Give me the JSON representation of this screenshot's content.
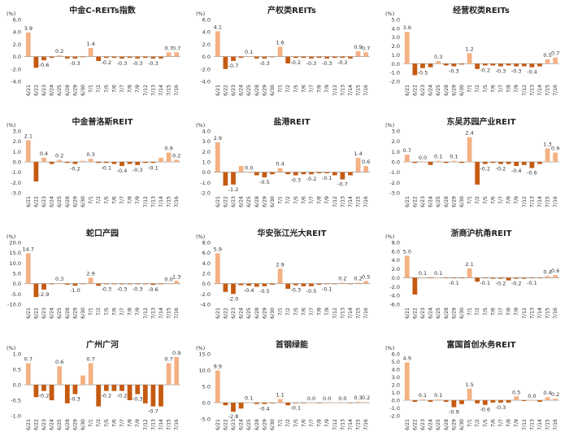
{
  "colors": {
    "positive": "#F4B183",
    "negative": "#C55A11",
    "text": "#333333",
    "axis": "#999999"
  },
  "chart_data": [
    {
      "type": "bar",
      "title": "中金C-REITs指数",
      "unit": "(%)",
      "categories": [
        "6/21",
        "6/22",
        "6/23",
        "6/24",
        "6/25",
        "6/28",
        "6/29",
        "6/30",
        "7/1",
        "7/2",
        "7/5",
        "7/6",
        "7/7",
        "7/8",
        "7/9",
        "7/12",
        "7/13",
        "7/14",
        "7/15",
        "7/16"
      ],
      "values": [
        3.9,
        -1.8,
        -0.6,
        -0.2,
        0.2,
        -0.3,
        -0.3,
        -0.1,
        1.4,
        -0.7,
        -0.2,
        -0.2,
        -0.3,
        -0.2,
        -0.3,
        -0.2,
        -0.3,
        -0.3,
        0.7,
        0.7
      ],
      "labeled_indices": [
        0,
        2,
        4,
        6,
        8,
        10,
        12,
        14,
        16,
        18,
        19
      ],
      "ylim": [
        -4.0,
        6.0
      ],
      "yticks": [
        "6.0",
        "4.0",
        "2.0",
        "0.0",
        "-2.0",
        "-4.0"
      ]
    },
    {
      "type": "bar",
      "title": "产权类REITs",
      "unit": "(%)",
      "categories": [
        "6/21",
        "6/22",
        "6/23",
        "6/24",
        "6/25",
        "6/28",
        "6/29",
        "6/30",
        "7/1",
        "7/2",
        "7/5",
        "7/6",
        "7/7",
        "7/8",
        "7/9",
        "7/12",
        "7/13",
        "7/14",
        "7/15",
        "7/16"
      ],
      "values": [
        4.1,
        -2.0,
        -0.7,
        -0.2,
        0.1,
        -0.3,
        -0.3,
        -0.1,
        1.6,
        -1.1,
        -0.2,
        -0.2,
        -0.3,
        -0.2,
        -0.3,
        -0.2,
        -0.2,
        -0.3,
        0.9,
        0.7
      ],
      "labeled_indices": [
        0,
        2,
        4,
        6,
        8,
        10,
        12,
        14,
        16,
        18,
        19
      ],
      "ylim": [
        -4.0,
        6.0
      ],
      "yticks": [
        "6.0",
        "4.0",
        "2.0",
        "0.0",
        "-2.0",
        "-4.0"
      ]
    },
    {
      "type": "bar",
      "title": "经营权类REITs",
      "unit": "(%)",
      "categories": [
        "6/21",
        "6/22",
        "6/23",
        "6/24",
        "6/25",
        "6/28",
        "6/29",
        "6/30",
        "7/1",
        "7/2",
        "7/5",
        "7/6",
        "7/7",
        "7/8",
        "7/9",
        "7/12",
        "7/13",
        "7/14",
        "7/15",
        "7/16"
      ],
      "values": [
        3.6,
        -1.3,
        -0.5,
        -0.4,
        0.3,
        -0.2,
        -0.3,
        -0.1,
        1.2,
        -0.6,
        -0.2,
        -0.2,
        -0.3,
        -0.2,
        -0.3,
        -0.3,
        -0.4,
        -0.3,
        0.5,
        0.7
      ],
      "labeled_indices": [
        0,
        2,
        4,
        6,
        8,
        10,
        12,
        14,
        16,
        18,
        19
      ],
      "ylim": [
        -2.0,
        5.0
      ],
      "yticks": [
        "5.0",
        "4.0",
        "3.0",
        "2.0",
        "1.0",
        "0.0",
        "-1.0",
        "-2.0"
      ]
    },
    {
      "type": "bar",
      "title": "中金普洛斯REIT",
      "unit": "(%)",
      "categories": [
        "6/21",
        "6/22",
        "6/23",
        "6/24",
        "6/25",
        "6/28",
        "6/29",
        "6/30",
        "7/1",
        "7/2",
        "7/5",
        "7/6",
        "7/7",
        "7/8",
        "7/9",
        "7/12",
        "7/13",
        "7/14",
        "7/15",
        "7/16"
      ],
      "values": [
        2.1,
        -1.9,
        0.4,
        -0.2,
        0.2,
        -0.1,
        -0.2,
        0.1,
        0.3,
        -0.1,
        -0.1,
        -0.2,
        -0.4,
        -0.2,
        -0.3,
        -0.1,
        -0.1,
        0.4,
        0.9,
        0.2
      ],
      "labeled_indices": [
        0,
        2,
        4,
        6,
        8,
        10,
        12,
        14,
        16,
        18,
        19
      ],
      "ylim": [
        -3.0,
        3.0
      ],
      "yticks": [
        "3.0",
        "2.0",
        "1.0",
        "0.0",
        "-1.0",
        "-2.0",
        "-3.0"
      ]
    },
    {
      "type": "bar",
      "title": "盐港REIT",
      "unit": "(%)",
      "categories": [
        "6/21",
        "6/22",
        "6/23",
        "6/24",
        "6/25",
        "6/28",
        "6/29",
        "6/30",
        "7/1",
        "7/2",
        "7/5",
        "7/6",
        "7/7",
        "7/8",
        "7/9",
        "7/12",
        "7/13",
        "7/14",
        "7/15",
        "7/16"
      ],
      "values": [
        2.9,
        -1.3,
        -1.2,
        0.6,
        0.0,
        -0.3,
        -0.5,
        -0.2,
        0.4,
        -0.2,
        -0.3,
        -0.2,
        -0.2,
        -0.1,
        -0.1,
        -0.3,
        -0.7,
        -0.3,
        1.4,
        0.6
      ],
      "labeled_indices": [
        0,
        2,
        4,
        6,
        8,
        10,
        12,
        14,
        16,
        18,
        19
      ],
      "ylim": [
        -2.0,
        4.0
      ],
      "yticks": [
        "4.0",
        "3.0",
        "2.0",
        "1.0",
        "0.0",
        "-1.0",
        "-2.0"
      ]
    },
    {
      "type": "bar",
      "title": "东吴苏园产业REIT",
      "unit": "(%)",
      "categories": [
        "6/21",
        "6/22",
        "6/23",
        "6/24",
        "6/25",
        "6/28",
        "6/29",
        "6/30",
        "7/1",
        "7/2",
        "7/5",
        "7/6",
        "7/7",
        "7/8",
        "7/9",
        "7/12",
        "7/13",
        "7/14",
        "7/15",
        "7/16"
      ],
      "values": [
        0.7,
        -0.1,
        0.0,
        -0.3,
        0.1,
        -0.1,
        0.1,
        -0.1,
        2.4,
        -2.2,
        -0.2,
        -0.1,
        -0.2,
        -0.2,
        -0.4,
        -0.3,
        -0.6,
        -0.2,
        1.3,
        0.9
      ],
      "labeled_indices": [
        0,
        2,
        4,
        6,
        8,
        10,
        12,
        14,
        16,
        18,
        19
      ],
      "ylim": [
        -3.0,
        3.0
      ],
      "yticks": [
        "3.0",
        "2.0",
        "1.0",
        "0.0",
        "-1.0",
        "-2.0",
        "-3.0"
      ]
    },
    {
      "type": "bar",
      "title": "蛇口产园",
      "unit": "(%)",
      "categories": [
        "6/21",
        "6/22",
        "6/23",
        "6/24",
        "6/25",
        "6/28",
        "6/29",
        "6/30",
        "7/1",
        "7/2",
        "7/5",
        "7/6",
        "7/7",
        "7/8",
        "7/9",
        "7/12",
        "7/13",
        "7/14",
        "7/15",
        "7/16"
      ],
      "values": [
        14.7,
        -6.5,
        -2.9,
        -0.3,
        0.3,
        -0.5,
        -1.0,
        -0.2,
        2.9,
        -1.0,
        -0.3,
        -0.3,
        -0.3,
        -0.3,
        -0.3,
        -0.3,
        -0.6,
        -0.3,
        0.0,
        1.3
      ],
      "labeled_indices": [
        0,
        2,
        4,
        6,
        8,
        10,
        12,
        14,
        16,
        18,
        19
      ],
      "ylim": [
        -10.0,
        20.0
      ],
      "yticks": [
        "20.0",
        "15.0",
        "10.0",
        "5.0",
        "0.0",
        "-5.0",
        "-10.0"
      ]
    },
    {
      "type": "bar",
      "title": "华安张江光大REIT",
      "unit": "(%)",
      "categories": [
        "6/21",
        "6/22",
        "6/23",
        "6/24",
        "6/25",
        "6/28",
        "6/29",
        "6/30",
        "7/1",
        "7/2",
        "7/5",
        "7/6",
        "7/7",
        "7/8",
        "7/9",
        "7/12",
        "7/13",
        "7/14",
        "7/15",
        "7/16"
      ],
      "values": [
        5.9,
        -1.6,
        -2.0,
        -0.3,
        -0.4,
        -0.6,
        -0.5,
        -0.2,
        2.9,
        -1.0,
        -0.3,
        -0.5,
        -0.5,
        -0.2,
        -0.1,
        -0.1,
        0.2,
        -0.1,
        0.2,
        0.5
      ],
      "labeled_indices": [
        0,
        2,
        4,
        6,
        8,
        10,
        12,
        14,
        16,
        18,
        19
      ],
      "ylim": [
        -4.0,
        8.0
      ],
      "yticks": [
        "8.0",
        "6.0",
        "4.0",
        "2.0",
        "0.0",
        "-2.0",
        "-4.0"
      ]
    },
    {
      "type": "bar",
      "title": "浙商沪杭甬REIT",
      "unit": "(%)",
      "categories": [
        "6/21",
        "6/22",
        "6/23",
        "6/24",
        "6/25",
        "6/28",
        "6/29",
        "6/30",
        "7/1",
        "7/2",
        "7/5",
        "7/6",
        "7/7",
        "7/8",
        "7/9",
        "7/12",
        "7/13",
        "7/14",
        "7/15",
        "7/16"
      ],
      "values": [
        5.0,
        -3.8,
        0.1,
        -0.1,
        0.1,
        -0.1,
        -0.1,
        -0.1,
        2.1,
        -0.9,
        -0.1,
        -0.2,
        -0.2,
        -0.6,
        -0.2,
        -0.2,
        -0.1,
        -0.1,
        0.4,
        0.6
      ],
      "labeled_indices": [
        0,
        2,
        4,
        6,
        8,
        10,
        12,
        14,
        16,
        18,
        19
      ],
      "ylim": [
        -6.0,
        8.0
      ],
      "yticks": [
        "8.0",
        "6.0",
        "4.0",
        "2.0",
        "0.0",
        "-2.0",
        "-4.0",
        "-6.0"
      ]
    },
    {
      "type": "bar",
      "title": "广州广河",
      "unit": "(%)",
      "categories": [
        "6/21",
        "6/22",
        "6/23",
        "6/24",
        "6/25",
        "6/28",
        "6/29",
        "6/30",
        "7/1",
        "7/2",
        "7/5",
        "7/6",
        "7/7",
        "7/8",
        "7/9",
        "7/12",
        "7/13",
        "7/14",
        "7/15",
        "7/16"
      ],
      "values": [
        0.7,
        -0.4,
        -0.2,
        -0.5,
        0.6,
        -0.6,
        -0.3,
        0.3,
        0.7,
        -0.7,
        -0.2,
        -0.2,
        -0.2,
        -0.5,
        -0.3,
        -0.6,
        -0.7,
        -0.7,
        0.7,
        0.9
      ],
      "labeled_indices": [
        0,
        2,
        4,
        6,
        8,
        10,
        12,
        14,
        16,
        18,
        19
      ],
      "ylim": [
        -1.0,
        1.0
      ],
      "yticks": [
        "1.0",
        "0.5",
        "0.0",
        "-0.5",
        "-1.0"
      ]
    },
    {
      "type": "bar",
      "title": "首钢绿能",
      "unit": "(%)",
      "categories": [
        "6/21",
        "6/22",
        "6/23",
        "6/24",
        "6/25",
        "6/28",
        "6/29",
        "6/30",
        "7/1",
        "7/2",
        "7/5",
        "7/6",
        "7/7",
        "7/8",
        "7/9",
        "7/12",
        "7/13",
        "7/14",
        "7/15",
        "7/16"
      ],
      "values": [
        9.9,
        -0.8,
        -2.8,
        -1.8,
        0.1,
        -0.4,
        -0.4,
        -0.2,
        1.1,
        -0.8,
        -0.1,
        -0.1,
        0.0,
        -0.1,
        0.0,
        0.1,
        0.0,
        -0.1,
        0.3,
        0.2
      ],
      "labeled_indices": [
        0,
        2,
        4,
        6,
        8,
        10,
        12,
        14,
        16,
        18,
        19
      ],
      "ylim": [
        -4.0,
        15.0
      ],
      "yticks": [
        "15.0",
        "10.0",
        "5.0",
        "0.0",
        "-5.0"
      ]
    },
    {
      "type": "bar",
      "title": "富国首创水务REIT",
      "unit": "(%)",
      "categories": [
        "6/21",
        "6/22",
        "6/23",
        "6/24",
        "6/25",
        "6/28",
        "6/29",
        "6/30",
        "7/1",
        "7/2",
        "7/5",
        "7/6",
        "7/7",
        "7/8",
        "7/9",
        "7/12",
        "7/13",
        "7/14",
        "7/15",
        "7/16"
      ],
      "values": [
        4.9,
        -0.2,
        0.1,
        -0.2,
        0.1,
        -0.2,
        -0.9,
        -0.5,
        1.5,
        -0.4,
        -0.6,
        -0.3,
        -0.3,
        -0.3,
        0.5,
        -0.1,
        0.0,
        -0.2,
        0.4,
        0.2
      ],
      "labeled_indices": [
        0,
        2,
        4,
        6,
        8,
        10,
        12,
        14,
        16,
        18,
        19
      ],
      "ylim": [
        -2.0,
        6.0
      ],
      "yticks": [
        "6.0",
        "5.0",
        "4.0",
        "3.0",
        "2.0",
        "1.0",
        "0.0",
        "-1.0",
        "-2.0"
      ]
    }
  ]
}
